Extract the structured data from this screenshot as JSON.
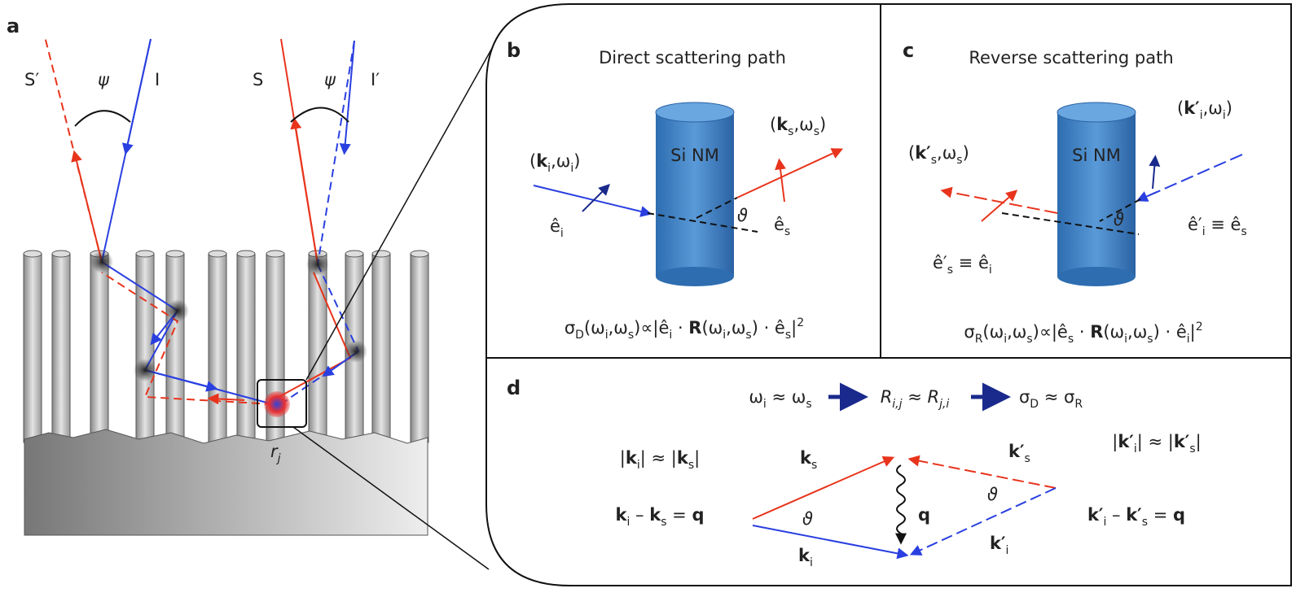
{
  "panel_a": {
    "label": "a",
    "beam_labels": [
      "S′",
      "ψ",
      "I",
      "S",
      "ψ",
      "I′"
    ],
    "site": [
      "r",
      {
        "sub": "j"
      }
    ]
  },
  "panel_b": {
    "label": "b",
    "title": "Direct scattering path",
    "cylinder": "Si NM",
    "incident": [
      "(",
      {
        "b": "k"
      },
      {
        "sub": "i"
      },
      ",ω",
      {
        "sub": "i"
      },
      ")"
    ],
    "scattered": [
      "(",
      {
        "b": "k"
      },
      {
        "sub": "s"
      },
      ",ω",
      {
        "sub": "s"
      },
      ")"
    ],
    "e_i": [
      "ê",
      {
        "sub": "i"
      }
    ],
    "e_s": [
      "ê",
      {
        "sub": "s"
      }
    ],
    "theta": "ϑ",
    "formula": [
      "σ",
      {
        "sub": "D"
      },
      "(ω",
      {
        "sub": "i"
      },
      ",ω",
      {
        "sub": "s"
      },
      ")∝|ê",
      {
        "sub": "i"
      },
      " · ",
      {
        "b": "R"
      },
      "(ω",
      {
        "sub": "i"
      },
      ",ω",
      {
        "sub": "s"
      },
      ") · ê",
      {
        "sub": "s"
      },
      "|",
      {
        "sup": "2"
      }
    ]
  },
  "panel_c": {
    "label": "c",
    "title": "Reverse scattering path",
    "cylinder": "Si NM",
    "incident": [
      "(",
      {
        "b": "k′"
      },
      {
        "sub": "i"
      },
      ",ω",
      {
        "sub": "i"
      },
      ")"
    ],
    "scattered": [
      "(",
      {
        "b": "k′"
      },
      {
        "sub": "s"
      },
      ",ω",
      {
        "sub": "s"
      },
      ")"
    ],
    "e_i": [
      "ê′",
      {
        "sub": "i"
      },
      " ≡ ê",
      {
        "sub": "s"
      }
    ],
    "e_s": [
      "ê′",
      {
        "sub": "s"
      },
      " ≡ ê",
      {
        "sub": "i"
      }
    ],
    "theta": "ϑ",
    "formula": [
      "σ",
      {
        "sub": "R"
      },
      "(ω",
      {
        "sub": "i"
      },
      ",ω",
      {
        "sub": "s"
      },
      ")∝|ê",
      {
        "sub": "s"
      },
      " · ",
      {
        "b": "R"
      },
      "(ω",
      {
        "sub": "i"
      },
      ",ω",
      {
        "sub": "s"
      },
      ") · ê",
      {
        "sub": "i"
      },
      "|",
      {
        "sup": "2"
      }
    ]
  },
  "panel_d": {
    "label": "d",
    "relation_1": [
      "ω",
      {
        "sub": "i"
      },
      " ≈ ω",
      {
        "sub": "s"
      }
    ],
    "relation_2": [
      "R",
      {
        "sub": "i,j"
      },
      " ≈ R",
      {
        "sub": "j,i"
      }
    ],
    "relation_3": [
      "σ",
      {
        "sub": "D"
      },
      " ≈ σ",
      {
        "sub": "R"
      }
    ],
    "mag_left": [
      "|",
      {
        "b": "k"
      },
      {
        "sub": "i"
      },
      "| ≈ |",
      {
        "b": "k"
      },
      {
        "sub": "s"
      },
      "|"
    ],
    "eq_left": [
      {
        "b": "k"
      },
      {
        "sub": "i"
      },
      " – ",
      {
        "b": "k"
      },
      {
        "sub": "s"
      },
      " = ",
      {
        "b": "q"
      }
    ],
    "mag_right": [
      "|",
      {
        "b": "k′"
      },
      {
        "sub": "i"
      },
      "| ≈ |",
      {
        "b": "k′"
      },
      {
        "sub": "s"
      },
      "|"
    ],
    "eq_right": [
      {
        "b": "k′"
      },
      {
        "sub": "i"
      },
      " – ",
      {
        "b": "k′"
      },
      {
        "sub": "s"
      },
      " = ",
      {
        "b": "q"
      }
    ],
    "k_s": [
      {
        "b": "k"
      },
      {
        "sub": "s"
      }
    ],
    "k_i": [
      {
        "b": "k"
      },
      {
        "sub": "i"
      }
    ],
    "k_s_prime": [
      {
        "b": "k′"
      },
      {
        "sub": "s"
      }
    ],
    "k_i_prime": [
      {
        "b": "k′"
      },
      {
        "sub": "i"
      }
    ],
    "q": [
      {
        "b": "q"
      }
    ],
    "theta_left": "ϑ",
    "theta_right": "ϑ"
  }
}
